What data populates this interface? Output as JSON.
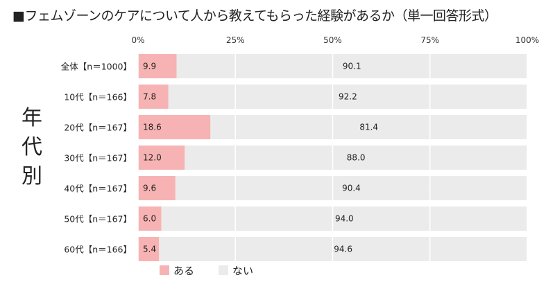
{
  "chart_data": {
    "type": "bar",
    "stacked": true,
    "orientation": "horizontal",
    "title": "■フェムゾーンのケアについて人から教えてもらった経験があるか（単一回答形式）",
    "ylabel": "年代別",
    "xlim": [
      0,
      100
    ],
    "xticks": [
      "0%",
      "25%",
      "50%",
      "75%",
      "100%"
    ],
    "grid": true,
    "legend_position": "bottom",
    "categories": [
      "全体【n＝1000】",
      "10代【n＝166】",
      "20代【n＝167】",
      "30代【n＝167】",
      "40代【n＝167】",
      "50代【n＝167】",
      "60代【n＝166】"
    ],
    "series": [
      {
        "name": "ある",
        "color": "#F7B3B3",
        "values": [
          9.9,
          7.8,
          18.6,
          12.0,
          9.6,
          6.0,
          5.4
        ],
        "labels": [
          "9.9",
          "7.8",
          "18.6",
          "12.0",
          "9.6",
          "6.0",
          "5.4"
        ]
      },
      {
        "name": "ない",
        "color": "#EBEBEB",
        "values": [
          90.1,
          92.2,
          81.4,
          88.0,
          90.4,
          94.0,
          94.6
        ],
        "labels": [
          "90.1",
          "92.2",
          "81.4",
          "88.0",
          "90.4",
          "94.0",
          "94.6"
        ]
      }
    ]
  }
}
